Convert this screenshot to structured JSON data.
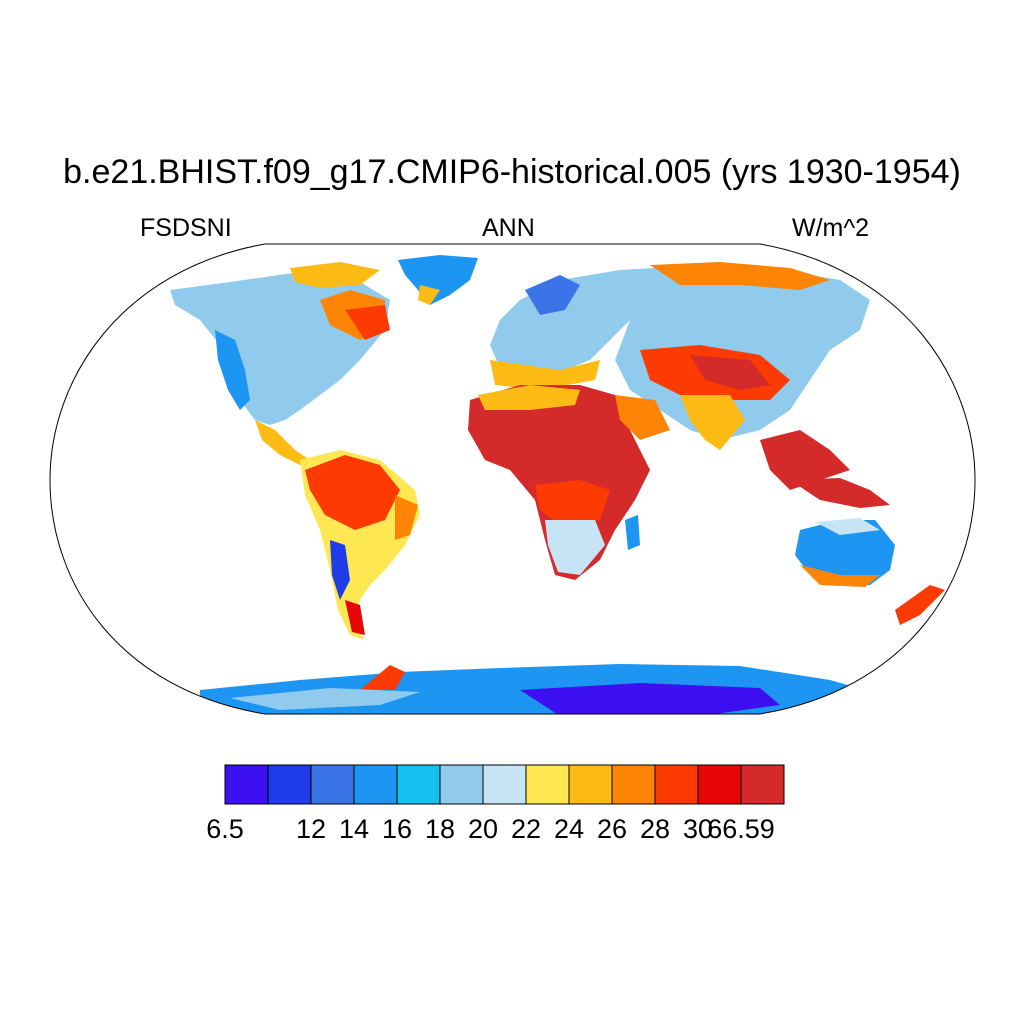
{
  "title": "b.e21.BHIST.f09_g17.CMIP6-historical.005 (yrs 1930-1954)",
  "subtitle_left": "FSDSNI",
  "subtitle_center": "ANN",
  "subtitle_right": "W/m^2",
  "colorbar": {
    "colors": [
      "#3c10f0",
      "#1e3ce8",
      "#3a74e6",
      "#1c96f2",
      "#16c1f2",
      "#90cbee",
      "#c7e4f6",
      "#fde753",
      "#fdbb14",
      "#fd8404",
      "#fd3a02",
      "#e80505",
      "#d52a2a"
    ],
    "labels": [
      "6.5",
      "12",
      "14",
      "16",
      "18",
      "20",
      "22",
      "24",
      "26",
      "28",
      "30",
      "66.59"
    ],
    "unit": "W/m^2"
  },
  "colors": {
    "outline": "#000000",
    "ocean": "#ffffff"
  }
}
